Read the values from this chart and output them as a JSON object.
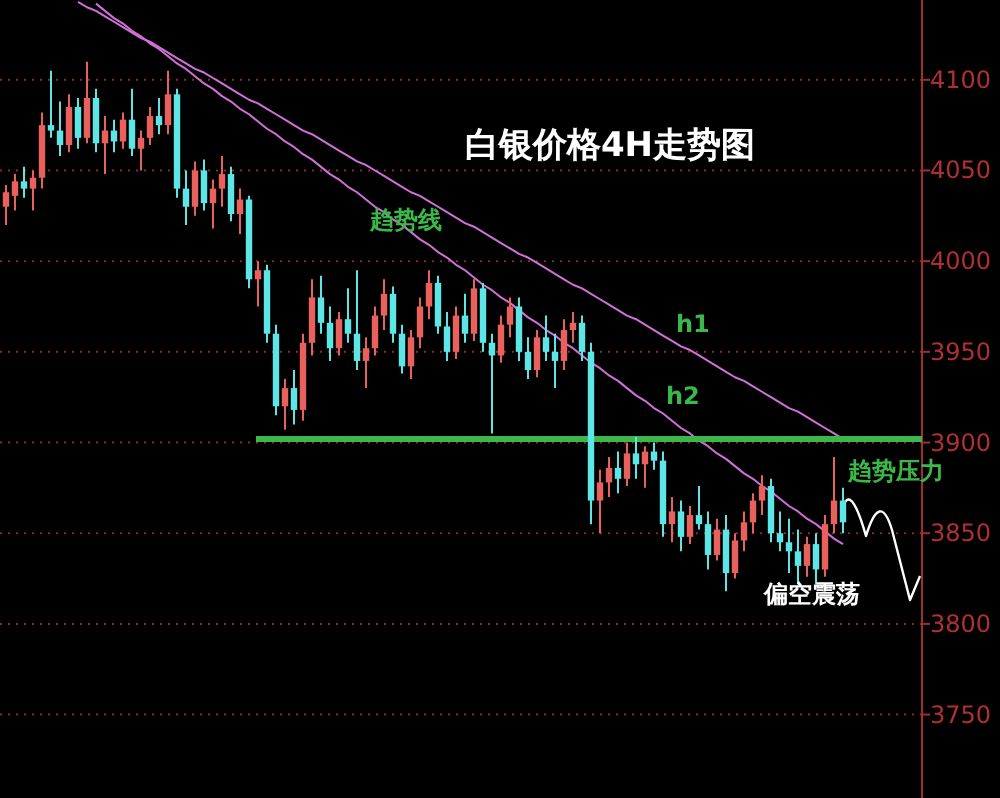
{
  "chart_data": {
    "type": "candlestick",
    "title": "白银价格4H走势图",
    "tick_labels": "y",
    "grid": "y",
    "ylim": [
      3704,
      4144
    ],
    "yticks": [
      3750,
      3800,
      3850,
      3900,
      3950,
      4000,
      4050,
      4100
    ],
    "categories": [
      null,
      null,
      null,
      null,
      null,
      null,
      null,
      null,
      null,
      null,
      null,
      null,
      null,
      null,
      null,
      null,
      null,
      null,
      null,
      null,
      null,
      null,
      null,
      null,
      null,
      null,
      null,
      null,
      null,
      null,
      null,
      null,
      null,
      null,
      null,
      null,
      null,
      null,
      null,
      null,
      null,
      null,
      null,
      null,
      null,
      null,
      null,
      null,
      null,
      null,
      null,
      null,
      null,
      null,
      null,
      null,
      null,
      null,
      null,
      null,
      null,
      null,
      null,
      null,
      null,
      null,
      null,
      null,
      null,
      null,
      null,
      null,
      null,
      null,
      null,
      null,
      null,
      null,
      null,
      null,
      null,
      null,
      null,
      null,
      null,
      null,
      null,
      null,
      null,
      null,
      null,
      null,
      null,
      null
    ],
    "ref_lines": [
      {
        "axis": "y",
        "value": 3902,
        "label": "趋势压力",
        "color": "#3cb84a"
      }
    ],
    "ohlc": [
      [
        4030,
        4042,
        4020,
        4038
      ],
      [
        4036,
        4048,
        4028,
        4044
      ],
      [
        4044,
        4052,
        4035,
        4040
      ],
      [
        4040,
        4050,
        4028,
        4046
      ],
      [
        4046,
        4082,
        4040,
        4075
      ],
      [
        4075,
        4105,
        4068,
        4072
      ],
      [
        4072,
        4088,
        4058,
        4064
      ],
      [
        4064,
        4092,
        4060,
        4085
      ],
      [
        4085,
        4090,
        4062,
        4068
      ],
      [
        4068,
        4110,
        4065,
        4090
      ],
      [
        4090,
        4095,
        4060,
        4065
      ],
      [
        4065,
        4080,
        4048,
        4072
      ],
      [
        4072,
        4078,
        4060,
        4066
      ],
      [
        4066,
        4082,
        4062,
        4078
      ],
      [
        4078,
        4095,
        4058,
        4062
      ],
      [
        4062,
        4072,
        4050,
        4068
      ],
      [
        4068,
        4085,
        4064,
        4080
      ],
      [
        4080,
        4090,
        4070,
        4075
      ],
      [
        4075,
        4105,
        4070,
        4092
      ],
      [
        4092,
        4095,
        4035,
        4040
      ],
      [
        4040,
        4050,
        4020,
        4030
      ],
      [
        4030,
        4055,
        4025,
        4050
      ],
      [
        4050,
        4056,
        4028,
        4032
      ],
      [
        4032,
        4045,
        4018,
        4040
      ],
      [
        4040,
        4058,
        4030,
        4048
      ],
      [
        4048,
        4052,
        4022,
        4026
      ],
      [
        4026,
        4040,
        4015,
        4034
      ],
      [
        4034,
        4036,
        3985,
        3990
      ],
      [
        3990,
        4000,
        3975,
        3995
      ],
      [
        3995,
        3998,
        3955,
        3960
      ],
      [
        3960,
        3965,
        3915,
        3920
      ],
      [
        3920,
        3935,
        3907,
        3930
      ],
      [
        3930,
        3940,
        3910,
        3918
      ],
      [
        3918,
        3960,
        3912,
        3955
      ],
      [
        3955,
        3990,
        3948,
        3980
      ],
      [
        3980,
        3992,
        3960,
        3966
      ],
      [
        3966,
        3975,
        3945,
        3952
      ],
      [
        3952,
        3972,
        3948,
        3968
      ],
      [
        3968,
        3985,
        3955,
        3960
      ],
      [
        3960,
        3995,
        3940,
        3945
      ],
      [
        3945,
        3958,
        3930,
        3952
      ],
      [
        3952,
        3975,
        3948,
        3970
      ],
      [
        3970,
        3990,
        3962,
        3982
      ],
      [
        3982,
        3986,
        3955,
        3960
      ],
      [
        3960,
        3965,
        3938,
        3942
      ],
      [
        3942,
        3962,
        3935,
        3958
      ],
      [
        3958,
        3980,
        3952,
        3975
      ],
      [
        3975,
        3995,
        3968,
        3988
      ],
      [
        3988,
        3992,
        3960,
        3964
      ],
      [
        3964,
        3972,
        3945,
        3950
      ],
      [
        3950,
        3975,
        3946,
        3970
      ],
      [
        3970,
        3982,
        3955,
        3960
      ],
      [
        3960,
        3990,
        3956,
        3985
      ],
      [
        3985,
        3988,
        3950,
        3955
      ],
      [
        3955,
        3960,
        3905,
        3948
      ],
      [
        3948,
        3970,
        3944,
        3965
      ],
      [
        3965,
        3980,
        3958,
        3975
      ],
      [
        3975,
        3980,
        3945,
        3950
      ],
      [
        3950,
        3958,
        3935,
        3940
      ],
      [
        3940,
        3962,
        3936,
        3958
      ],
      [
        3958,
        3970,
        3945,
        3950
      ],
      [
        3950,
        3960,
        3930,
        3945
      ],
      [
        3945,
        3968,
        3940,
        3962
      ],
      [
        3962,
        3972,
        3955,
        3966
      ],
      [
        3966,
        3970,
        3945,
        3950
      ],
      [
        3950,
        3955,
        3855,
        3868
      ],
      [
        3868,
        3885,
        3850,
        3878
      ],
      [
        3878,
        3892,
        3870,
        3886
      ],
      [
        3886,
        3895,
        3872,
        3880
      ],
      [
        3880,
        3900,
        3876,
        3894
      ],
      [
        3894,
        3903,
        3880,
        3888
      ],
      [
        3888,
        3898,
        3875,
        3895
      ],
      [
        3895,
        3900,
        3885,
        3890
      ],
      [
        3890,
        3895,
        3848,
        3855
      ],
      [
        3855,
        3870,
        3845,
        3862
      ],
      [
        3862,
        3868,
        3840,
        3848
      ],
      [
        3848,
        3865,
        3844,
        3860
      ],
      [
        3860,
        3876,
        3852,
        3855
      ],
      [
        3855,
        3862,
        3830,
        3838
      ],
      [
        3838,
        3858,
        3835,
        3852
      ],
      [
        3852,
        3860,
        3818,
        3828
      ],
      [
        3828,
        3850,
        3825,
        3846
      ],
      [
        3846,
        3862,
        3840,
        3856
      ],
      [
        3856,
        3872,
        3850,
        3868
      ],
      [
        3868,
        3882,
        3860,
        3876
      ],
      [
        3876,
        3880,
        3845,
        3850
      ],
      [
        3850,
        3862,
        3840,
        3845
      ],
      [
        3845,
        3858,
        3828,
        3840
      ],
      [
        3840,
        3852,
        3822,
        3832
      ],
      [
        3832,
        3848,
        3826,
        3844
      ],
      [
        3844,
        3850,
        3822,
        3830
      ],
      [
        3830,
        3860,
        3826,
        3855
      ],
      [
        3855,
        3892,
        3850,
        3868
      ],
      [
        3868,
        3875,
        3850,
        3856
      ]
    ],
    "colors": [
      "#e8615c",
      "#e8615c",
      "#5ee6e6",
      "#e8615c",
      "#e8615c",
      "#5ee6e6",
      "#5ee6e6",
      "#e8615c",
      "#5ee6e6",
      "#e8615c",
      "#5ee6e6",
      "#e8615c",
      "#5ee6e6",
      "#e8615c",
      "#5ee6e6",
      "#e8615c",
      "#e8615c",
      "#5ee6e6",
      "#e8615c",
      "#5ee6e6",
      "#5ee6e6",
      "#e8615c",
      "#5ee6e6",
      "#e8615c",
      "#e8615c",
      "#5ee6e6",
      "#e8615c",
      "#5ee6e6",
      "#e8615c",
      "#5ee6e6",
      "#5ee6e6",
      "#e8615c",
      "#5ee6e6",
      "#e8615c",
      "#e8615c",
      "#5ee6e6",
      "#5ee6e6",
      "#e8615c",
      "#5ee6e6",
      "#5ee6e6",
      "#e8615c",
      "#e8615c",
      "#e8615c",
      "#5ee6e6",
      "#5ee6e6",
      "#e8615c",
      "#e8615c",
      "#e8615c",
      "#5ee6e6",
      "#5ee6e6",
      "#e8615c",
      "#5ee6e6",
      "#e8615c",
      "#5ee6e6",
      "#5ee6e6",
      "#e8615c",
      "#e8615c",
      "#5ee6e6",
      "#5ee6e6",
      "#e8615c",
      "#5ee6e6",
      "#5ee6e6",
      "#e8615c",
      "#e8615c",
      "#5ee6e6",
      "#5ee6e6",
      "#e8615c",
      "#e8615c",
      "#5ee6e6",
      "#e8615c",
      "#5ee6e6",
      "#e8615c",
      "#5ee6e6",
      "#5ee6e6",
      "#e8615c",
      "#5ee6e6",
      "#e8615c",
      "#5ee6e6",
      "#5ee6e6",
      "#e8615c",
      "#5ee6e6",
      "#e8615c",
      "#e8615c",
      "#e8615c",
      "#e8615c",
      "#5ee6e6",
      "#5ee6e6",
      "#5ee6e6",
      "#5ee6e6",
      "#e8615c",
      "#5ee6e6",
      "#e8615c",
      "#e8615c",
      "#5ee6e6"
    ],
    "series": [
      {
        "type": "line",
        "color": "#d070d8",
        "values": [
          null,
          null,
          null,
          null,
          null,
          null,
          null,
          null,
          4143,
          4140,
          4138,
          4135,
          4132,
          4129,
          4126,
          4123,
          4121,
          4118,
          4115,
          4112,
          4109,
          4106,
          4104,
          4101,
          4098,
          4095,
          4092,
          4089,
          4087,
          4084,
          4081,
          4078,
          4075,
          4072,
          4070,
          4067,
          4064,
          4061,
          4058,
          4055,
          4053,
          4050,
          4047,
          4044,
          4041,
          4038,
          4036,
          4033,
          4030,
          4027,
          4024,
          4021,
          4019,
          4016,
          4013,
          4010,
          4007,
          4004,
          4002,
          3999,
          3996,
          3993,
          3990,
          3987,
          3985,
          3982,
          3979,
          3976,
          3973,
          3970,
          3968,
          3965,
          3962,
          3959,
          3956,
          3953,
          3951,
          3948,
          3945,
          3942,
          3939,
          3936,
          3934,
          3931,
          3928,
          3925,
          3922,
          3919,
          3917,
          3914,
          3911,
          3908,
          3905,
          3902
        ]
      },
      {
        "type": "line",
        "color": "#d070d8",
        "values": [
          null,
          null,
          null,
          null,
          null,
          null,
          null,
          null,
          null,
          null,
          4142,
          4138,
          4134,
          4131,
          4127,
          4124,
          4120,
          4117,
          4113,
          4109,
          4106,
          4102,
          4098,
          4095,
          4091,
          4088,
          4084,
          4081,
          4077,
          4073,
          4070,
          4066,
          4063,
          4059,
          4056,
          4052,
          4048,
          4045,
          4041,
          4038,
          4034,
          4030,
          4027,
          4023,
          4020,
          4016,
          4012,
          4009,
          4005,
          4002,
          3998,
          3995,
          3991,
          3987,
          3984,
          3980,
          3977,
          3973,
          3969,
          3966,
          3962,
          3959,
          3955,
          3952,
          3948,
          3944,
          3941,
          3937,
          3934,
          3930,
          3926,
          3923,
          3919,
          3916,
          3912,
          3908,
          3905,
          3901,
          3898,
          3894,
          3891,
          3887,
          3883,
          3880,
          3876,
          3873,
          3869,
          3865,
          3862,
          3858,
          3855,
          3851,
          3847,
          3844
        ]
      }
    ],
    "annotations": [
      "趋势线",
      "h1",
      "h2",
      "偏空震荡"
    ]
  }
}
